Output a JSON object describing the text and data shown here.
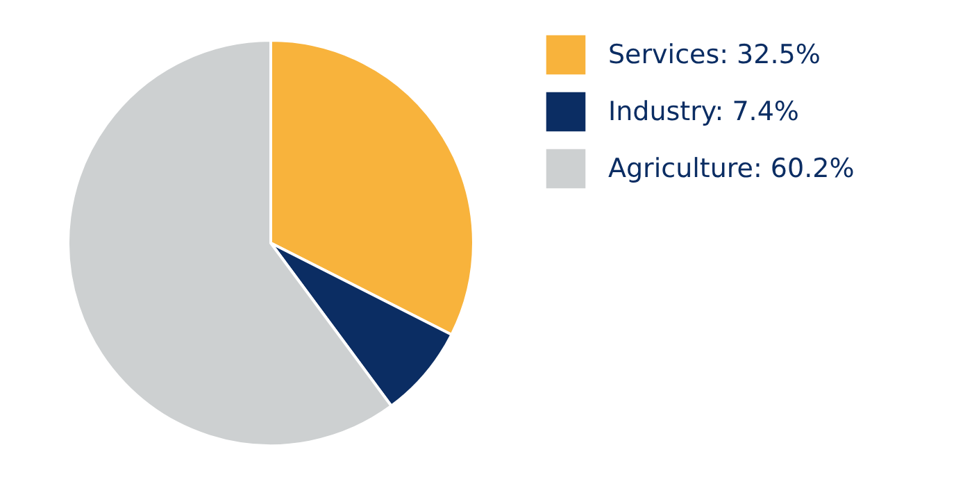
{
  "chart_data": {
    "type": "pie",
    "categories": [
      "Services: 32.5%",
      "Industry: 7.4%",
      "Agriculture: 60.2%"
    ],
    "values": [
      32.5,
      7.4,
      60.2
    ],
    "colors": [
      "#f8b33c",
      "#0b2d63",
      "#cdd0d1"
    ],
    "legend": "right"
  }
}
